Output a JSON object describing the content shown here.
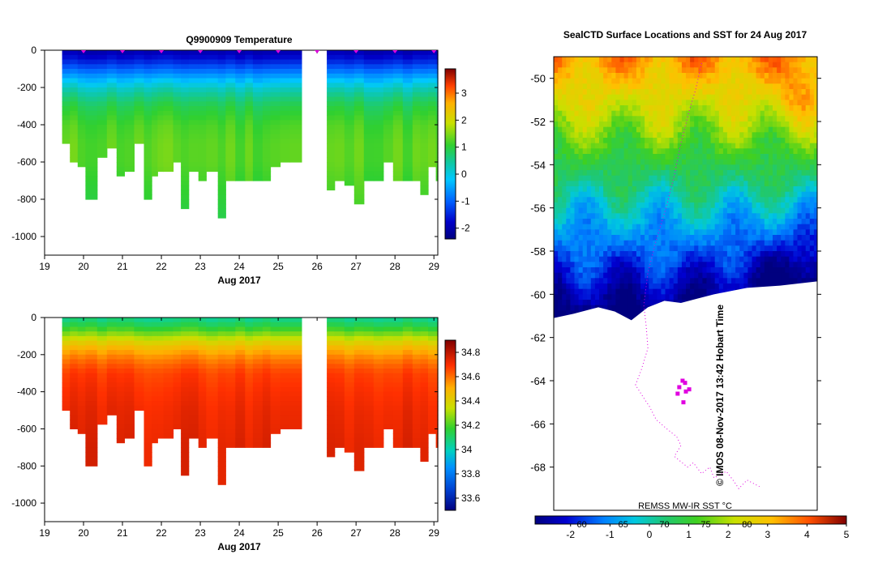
{
  "colors": {
    "background": "#ffffff",
    "axis": "#000000",
    "track_marker": "#e000e0",
    "sst_ramp": [
      "#00007f",
      "#0000c8",
      "#0050e0",
      "#0090ff",
      "#00c8d8",
      "#10c890",
      "#2fcf40",
      "#40d020",
      "#80d818",
      "#c8e010",
      "#ffd000",
      "#ff9800",
      "#ff5000",
      "#c81000",
      "#800000"
    ]
  },
  "chart_data": [
    {
      "id": "temperature-section",
      "type": "heatmap",
      "title": "Q9900909  Temperature",
      "xlabel": "Aug 2017",
      "ylabel": "",
      "xlim": [
        19,
        29.1
      ],
      "ylim": [
        -1100,
        0
      ],
      "x_ticks": [
        "19",
        "20",
        "21",
        "22",
        "23",
        "24",
        "25",
        "26",
        "27",
        "28",
        "29"
      ],
      "x_tick_values": [
        19,
        20,
        21,
        22,
        23,
        24,
        25,
        26,
        27,
        28,
        29
      ],
      "y_ticks": [
        "0",
        "-200",
        "-400",
        "-600",
        "-800",
        "-1000"
      ],
      "y_tick_values": [
        0,
        -200,
        -400,
        -600,
        -800,
        -1000
      ],
      "colorbar": {
        "range": [
          -2.4,
          3.9
        ],
        "ticks": [
          "-2",
          "-1",
          "0",
          "1",
          "2",
          "3"
        ],
        "tick_values": [
          -2,
          -1,
          0,
          1,
          2,
          3
        ]
      },
      "profile_dates": [
        19.45,
        19.65,
        19.85,
        20.05,
        20.35,
        20.6,
        20.85,
        21.05,
        21.3,
        21.55,
        21.75,
        21.9,
        22.05,
        22.3,
        22.5,
        22.7,
        22.95,
        23.15,
        23.45,
        23.65,
        23.9,
        24.15,
        24.35,
        24.6,
        24.8,
        25.05,
        25.3,
        26.25,
        26.45,
        26.7,
        26.95,
        27.2,
        27.45,
        27.7,
        27.95,
        28.2,
        28.45,
        28.65,
        28.85,
        29.05
      ],
      "profile_max_depths": [
        500,
        600,
        620,
        800,
        570,
        510,
        660,
        650,
        500,
        790,
        670,
        640,
        630,
        600,
        840,
        650,
        700,
        640,
        890,
        690,
        680,
        680,
        680,
        680,
        620,
        600,
        600,
        730,
        680,
        720,
        820,
        680,
        680,
        580,
        700,
        690,
        700,
        770,
        620,
        680
      ],
      "depth_levels": [
        0,
        50,
        100,
        150,
        200,
        250,
        300,
        400,
        500,
        600,
        700,
        800,
        900
      ],
      "temperature_profile_typical": [
        -2.0,
        -1.6,
        -1.0,
        -0.4,
        0.2,
        0.6,
        0.9,
        1.2,
        1.3,
        1.3,
        1.2,
        1.1,
        1.0
      ],
      "gap": [
        25.6,
        26.15
      ],
      "surface_markers_x": [
        20,
        21,
        22,
        23,
        24,
        25,
        26,
        27,
        28,
        29
      ]
    },
    {
      "id": "salinity-section",
      "type": "heatmap",
      "title": "",
      "xlabel": "Aug 2017",
      "ylabel": "",
      "xlim": [
        19,
        29.1
      ],
      "ylim": [
        -1100,
        0
      ],
      "x_ticks": [
        "19",
        "20",
        "21",
        "22",
        "23",
        "24",
        "25",
        "26",
        "27",
        "28",
        "29"
      ],
      "x_tick_values": [
        19,
        20,
        21,
        22,
        23,
        24,
        25,
        26,
        27,
        28,
        29
      ],
      "y_ticks": [
        "0",
        "-200",
        "-400",
        "-600",
        "-800",
        "-1000"
      ],
      "y_tick_values": [
        0,
        -200,
        -400,
        -600,
        -800,
        -1000
      ],
      "colorbar": {
        "range": [
          33.5,
          34.9
        ],
        "ticks": [
          "33.6",
          "33.8",
          "34",
          "34.2",
          "34.4",
          "34.6",
          "34.8"
        ],
        "tick_values": [
          33.6,
          33.8,
          34.0,
          34.2,
          34.4,
          34.6,
          34.8
        ]
      },
      "depth_levels": [
        0,
        50,
        100,
        150,
        200,
        250,
        300,
        400,
        500,
        600,
        700,
        800,
        900
      ],
      "salinity_profile_typical": [
        34.05,
        34.15,
        34.3,
        34.45,
        34.55,
        34.62,
        34.67,
        34.7,
        34.72,
        34.73,
        34.74,
        34.74,
        34.74
      ]
    },
    {
      "id": "sst-map",
      "type": "heatmap",
      "title": "SealCTD Surface Locations and SST for 24 Aug 2017",
      "xlabel": "",
      "ylabel": "",
      "ylim": [
        -70.0,
        -49.0
      ],
      "y_ticks": [
        "-50",
        "-52",
        "-54",
        "-56",
        "-58",
        "-60",
        "-62",
        "-64",
        "-66",
        "-68"
      ],
      "y_tick_values": [
        -50,
        -52,
        -54,
        -56,
        -58,
        -60,
        -62,
        -64,
        -66,
        -68
      ],
      "lon_ticks": [
        "60",
        "65",
        "70",
        "75",
        "80"
      ],
      "lon_tick_values": [
        60,
        65,
        70,
        75,
        80
      ],
      "lon_range": [
        56.6,
        88.5
      ],
      "colorbar": {
        "range": [
          -2.9,
          5
        ],
        "ticks": [
          "-2",
          "-1",
          "0",
          "1",
          "2",
          "3",
          "4",
          "5"
        ],
        "tick_values": [
          -2,
          -1,
          0,
          1,
          2,
          3,
          4,
          5
        ]
      },
      "source_label": "REMSS MW-IR SST °C",
      "credit": "©  IMOS 08-Nov-2017 13:42 Hobart Time",
      "ice_edge_lat": [
        -61.1,
        -60.9,
        -60.6,
        -60.8,
        -61.2,
        -60.6,
        -60.3,
        -60.4,
        -60.2,
        -60.0,
        -59.7,
        -59.6,
        -59.4
      ],
      "ice_edge_lon": [
        56.6,
        59,
        62,
        64,
        66,
        68,
        70,
        72,
        74,
        76,
        80,
        84,
        88.5
      ],
      "track_lon": [
        74.5,
        74.2,
        73.8,
        73.0,
        72.0,
        71.2,
        70.2,
        69.0,
        68.0,
        67.5,
        67.8,
        68.0,
        67.2,
        66.5,
        67.5,
        68.2,
        69.0,
        70.2,
        71.5,
        72.0,
        71.2,
        72.8,
        73.5,
        74.5,
        75.5,
        76.0,
        77.5,
        78.5,
        79.0,
        80.0,
        81.5
      ],
      "track_lat": [
        -49.3,
        -49.8,
        -50.5,
        -51.5,
        -53.0,
        -54.5,
        -56.0,
        -57.5,
        -59.0,
        -60.5,
        -61.5,
        -62.5,
        -63.5,
        -64.2,
        -64.8,
        -65.2,
        -65.8,
        -66.2,
        -66.6,
        -67.0,
        -67.5,
        -68.0,
        -67.8,
        -68.3,
        -68.0,
        -68.5,
        -68.2,
        -68.7,
        -69.0,
        -68.6,
        -68.9
      ],
      "surface_points_lon": [
        71.8,
        72.2,
        72.5,
        73.0,
        72.6,
        71.6,
        72.3
      ],
      "surface_points_lat": [
        -64.3,
        -64.0,
        -64.1,
        -64.4,
        -64.5,
        -64.6,
        -65.0
      ]
    }
  ]
}
